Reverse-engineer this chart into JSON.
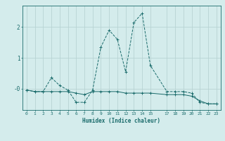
{
  "title": "",
  "xlabel": "Humidex (Indice chaleur)",
  "background_color": "#d4ecec",
  "grid_color": "#b8d4d4",
  "line_color": "#1a6b6b",
  "xlim": [
    -0.5,
    23.5
  ],
  "ylim": [
    -0.7,
    2.7
  ],
  "yticks": [
    0,
    1,
    2
  ],
  "ytick_labels": [
    "-0",
    "1",
    "2"
  ],
  "xticks": [
    0,
    1,
    2,
    3,
    4,
    5,
    6,
    7,
    8,
    9,
    10,
    11,
    12,
    13,
    14,
    15,
    17,
    18,
    19,
    20,
    21,
    22,
    23
  ],
  "series1_x": [
    0,
    1,
    2,
    3,
    4,
    5,
    6,
    7,
    8,
    9,
    10,
    11,
    12,
    13,
    14,
    15,
    17,
    18,
    19,
    20,
    21,
    22,
    23
  ],
  "series1_y": [
    -0.05,
    -0.1,
    -0.1,
    0.35,
    0.1,
    -0.05,
    -0.45,
    -0.45,
    -0.05,
    1.35,
    1.9,
    1.6,
    0.55,
    2.15,
    2.45,
    0.75,
    -0.1,
    -0.1,
    -0.1,
    -0.15,
    -0.45,
    -0.5,
    -0.5
  ],
  "series2_x": [
    0,
    1,
    2,
    3,
    4,
    5,
    6,
    7,
    8,
    9,
    10,
    11,
    12,
    13,
    14,
    15,
    17,
    18,
    19,
    20,
    21,
    22,
    23
  ],
  "series2_y": [
    -0.05,
    -0.1,
    -0.1,
    -0.1,
    -0.1,
    -0.1,
    -0.15,
    -0.2,
    -0.1,
    -0.1,
    -0.1,
    -0.1,
    -0.15,
    -0.15,
    -0.15,
    -0.15,
    -0.2,
    -0.2,
    -0.2,
    -0.25,
    -0.4,
    -0.5,
    -0.5
  ]
}
